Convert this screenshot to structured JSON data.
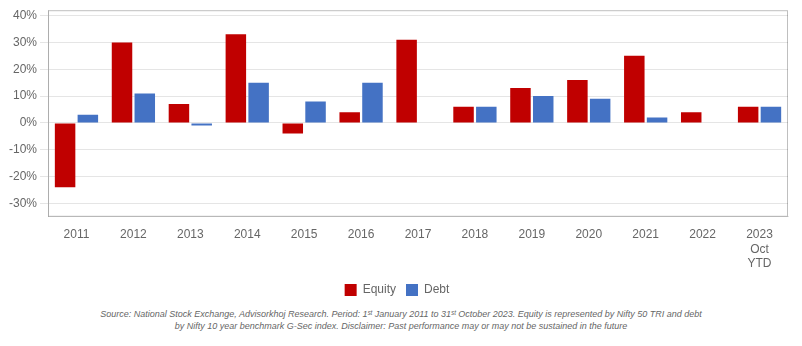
{
  "chart_data": {
    "type": "bar",
    "categories": [
      "2011",
      "2012",
      "2013",
      "2014",
      "2015",
      "2016",
      "2017",
      "2018",
      "2019",
      "2020",
      "2021",
      "2022",
      "2023\nOct\nYTD"
    ],
    "series": [
      {
        "name": "Equity",
        "color": "#c00000",
        "values": [
          -24,
          30,
          7,
          33,
          -4,
          4,
          31,
          6,
          13,
          16,
          25,
          4,
          6
        ]
      },
      {
        "name": "Debt",
        "color": "#4472c4",
        "values": [
          3,
          11,
          -1,
          15,
          8,
          15,
          0,
          6,
          10,
          9,
          2,
          0,
          6
        ]
      }
    ],
    "ylim": [
      -35,
      42
    ],
    "yticks": [
      {
        "value": -30,
        "label": "-30%"
      },
      {
        "value": -20,
        "label": "-20%"
      },
      {
        "value": -10,
        "label": "-10%"
      },
      {
        "value": 0,
        "label": "0%"
      },
      {
        "value": 10,
        "label": "10%"
      },
      {
        "value": 20,
        "label": "20%"
      },
      {
        "value": 30,
        "label": "30%"
      },
      {
        "value": 40,
        "label": "40%"
      }
    ],
    "grid": true,
    "legend": "bottom",
    "annotations": [
      "Source: National Stock Exchange, Advisorkhoj Research. Period: 1ˢᵗ January 2011 to 31ˢᵗ October 2023. Equity is represented by Nifty 50 TRI and debt",
      "by Nifty 10 year benchmark G-Sec index. Disclaimer: Past performance may or may not be sustained in the future"
    ]
  }
}
